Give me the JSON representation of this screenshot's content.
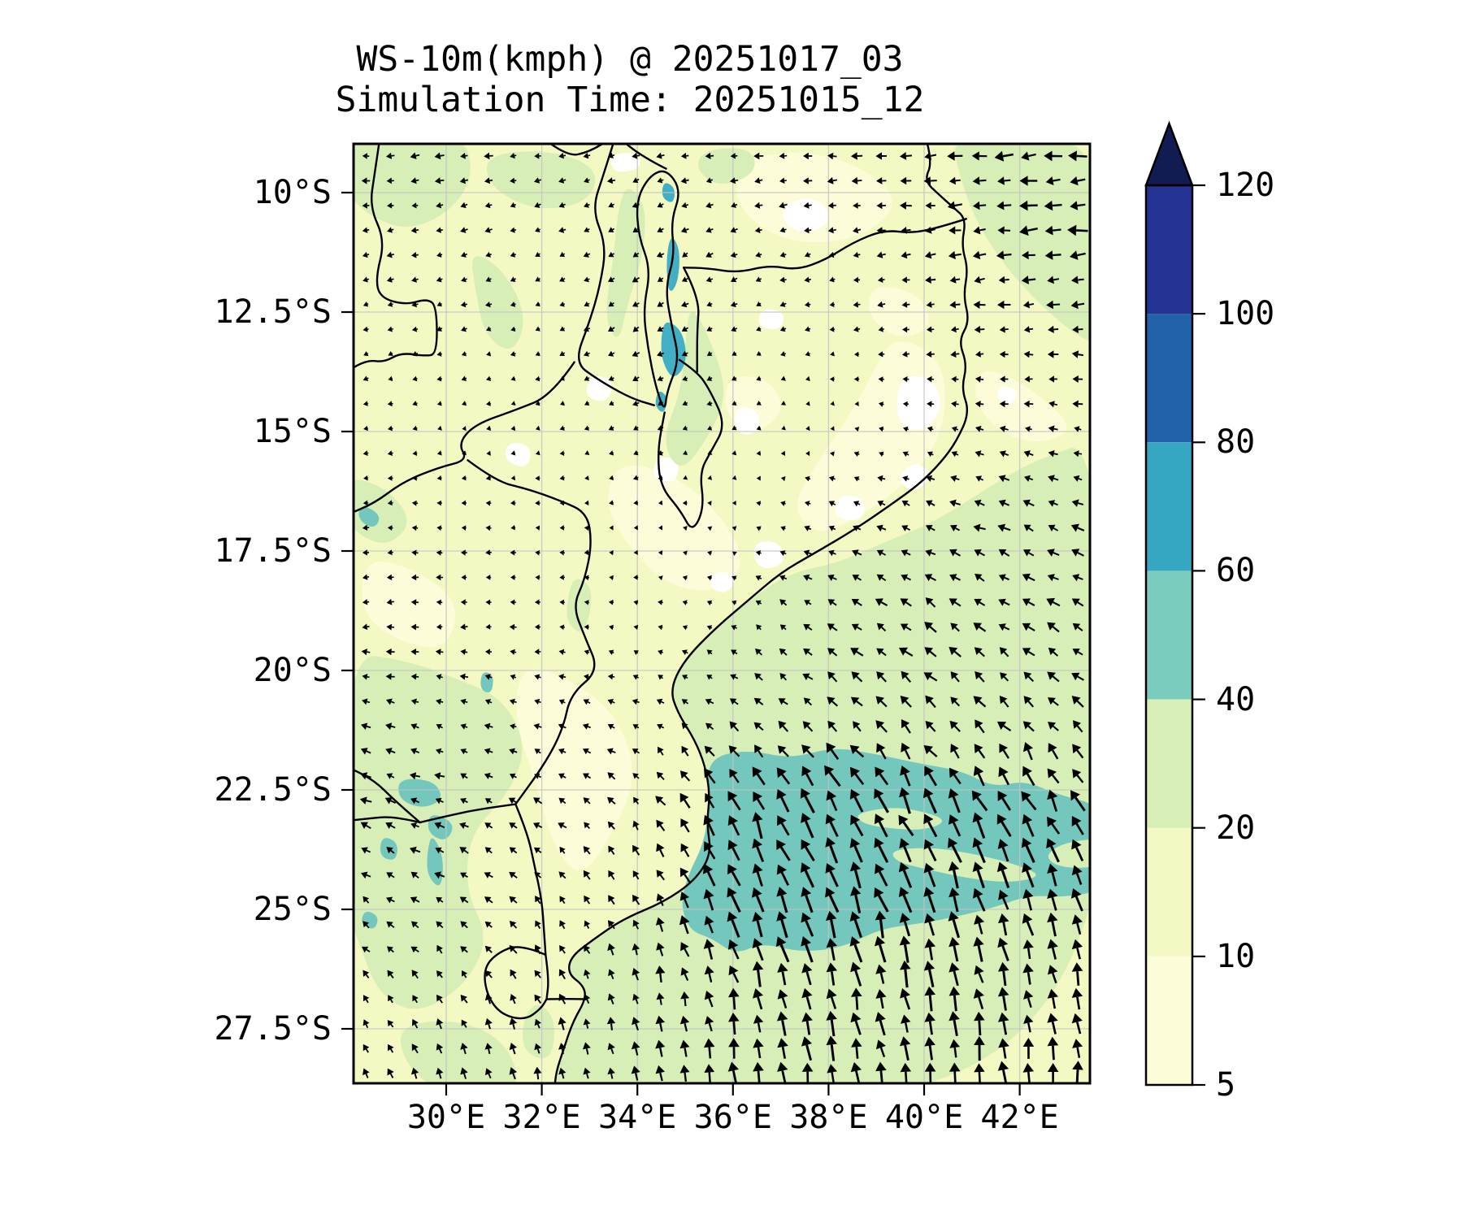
{
  "title": {
    "line1": "WS-10m(kmph) @ 20251017_03",
    "line2": "Simulation Time: 20251015_12"
  },
  "axes": {
    "x_ticks": [
      "30°E",
      "32°E",
      "34°E",
      "36°E",
      "38°E",
      "40°E",
      "42°E"
    ],
    "x_tick_lons": [
      30,
      32,
      34,
      36,
      38,
      40,
      42
    ],
    "y_ticks": [
      "10°S",
      "12.5°S",
      "15°S",
      "17.5°S",
      "20°S",
      "22.5°S",
      "25°S",
      "27.5°S"
    ],
    "y_tick_lats": [
      10,
      12.5,
      15,
      17.5,
      20,
      22.5,
      25,
      27.5
    ]
  },
  "colorbar": {
    "levels": [
      5,
      10,
      20,
      40,
      60,
      80,
      100,
      120
    ],
    "tick_labels": [
      "5",
      "10",
      "20",
      "40",
      "60",
      "80",
      "100",
      "120"
    ],
    "colors": [
      "#fdfcd8",
      "#f4f9c3",
      "#d7efb6",
      "#7accbe",
      "#36a7c3",
      "#2262aa",
      "#253494"
    ],
    "over_color": "#121c53",
    "units": "kmph"
  },
  "map_colors": {
    "background": "#ffffff",
    "base": "#f4f9c3",
    "calm": "#ffffff",
    "cream": "#fdfcd8",
    "green": "#d7efb6",
    "teal": "#74c7bd",
    "lake_teal": "#43afc4",
    "grid": "#c3c3c3",
    "border": "#000000"
  },
  "chart_data": {
    "type": "quiver+filled-contour geographic map",
    "variable": "WS-10m",
    "units": "kmph",
    "valid_time": "20251017_03",
    "simulation_time": "20251015_12",
    "lon_range_east": [
      28.1,
      43.5
    ],
    "lat_range_south": [
      9.0,
      28.6
    ],
    "contour_levels": [
      5,
      10,
      20,
      40,
      60,
      80,
      100,
      120
    ],
    "legend_position": "right colorbar, extended max arrow",
    "grid_on": true,
    "wind_grid": {
      "lons": [
        28.2,
        30,
        32,
        34,
        36,
        38,
        40,
        42,
        43.4
      ],
      "lats_south": [
        9.2,
        11,
        13,
        15,
        17,
        19,
        21,
        23,
        25,
        27,
        28.5
      ],
      "u_east": [
        [
          -9,
          -11,
          -9,
          -8,
          -10,
          -12,
          -16,
          -24,
          -27
        ],
        [
          -8,
          -8,
          -7,
          -9,
          -8,
          -9,
          -14,
          -22,
          -25
        ],
        [
          -6,
          -6,
          -5,
          -8,
          -6,
          -5,
          -9,
          -13,
          -15
        ],
        [
          -5,
          -4,
          -4,
          -6,
          -4,
          -3,
          -7,
          -10,
          -11
        ],
        [
          -7,
          -6,
          -5,
          -4,
          -3,
          -9,
          -13,
          -15,
          -16
        ],
        [
          -9,
          -8,
          -7,
          -5,
          -5,
          -13,
          -16,
          -16,
          -16
        ],
        [
          -11,
          -10,
          -9,
          -8,
          -11,
          -14,
          -15,
          -14,
          -14
        ],
        [
          -13,
          -12,
          -10,
          -9,
          -15,
          -17,
          -17,
          -16,
          -15
        ],
        [
          -10,
          -10,
          -8,
          -7,
          -13,
          -14,
          -12,
          -10,
          -9
        ],
        [
          -7,
          -7,
          -6,
          -4,
          -5,
          -6,
          -6,
          -5,
          -5
        ],
        [
          -5,
          -5,
          -4,
          -3,
          -3,
          -4,
          -4,
          -3,
          -3
        ]
      ],
      "v_north": [
        [
          0,
          -2,
          -1,
          -3,
          -1,
          0,
          -2,
          -2,
          -2
        ],
        [
          -2,
          -2,
          -3,
          -4,
          -3,
          -2,
          -2,
          -2,
          -2
        ],
        [
          -2,
          -2,
          -2,
          -5,
          -3,
          -1,
          -1,
          -1,
          0
        ],
        [
          -1,
          -1,
          -1,
          -3,
          -2,
          0,
          2,
          2,
          2
        ],
        [
          0,
          0,
          0,
          0,
          1,
          4,
          6,
          6,
          6
        ],
        [
          -1,
          0,
          0,
          1,
          3,
          9,
          11,
          10,
          10
        ],
        [
          3,
          3,
          3,
          4,
          8,
          13,
          14,
          13,
          13
        ],
        [
          5,
          5,
          6,
          10,
          32,
          37,
          36,
          34,
          30
        ],
        [
          7,
          8,
          9,
          13,
          35,
          39,
          36,
          30,
          28
        ],
        [
          10,
          11,
          13,
          17,
          29,
          31,
          30,
          29,
          28
        ],
        [
          12,
          13,
          15,
          19,
          31,
          32,
          31,
          30,
          30
        ]
      ]
    }
  }
}
